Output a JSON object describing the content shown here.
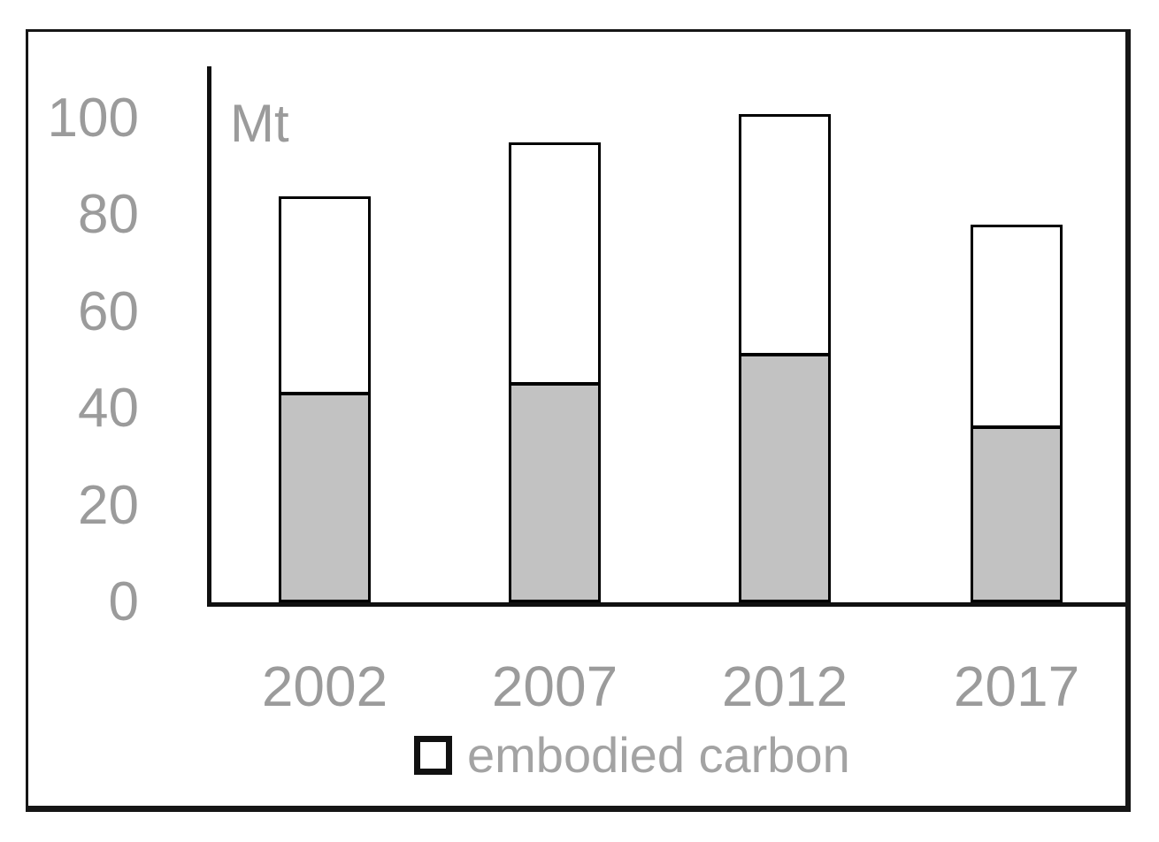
{
  "colors": {
    "gray_segment_fill": "#c2c2c2",
    "white_segment_fill": "#ffffff",
    "bar_border": "#000000",
    "axis_line": "#101010",
    "frame_border": "#161616",
    "tick_text": "#9b9b9b",
    "legend_text": "#a3a3a3"
  },
  "chart_data": {
    "type": "bar",
    "stacked": true,
    "title": "",
    "xlabel": "",
    "ylabel": "Mt",
    "categories": [
      "2002",
      "2007",
      "2012",
      "2017"
    ],
    "series": [
      {
        "name": "",
        "legend_shown": false,
        "fill": "#c2c2c2",
        "values": [
          43,
          45,
          51,
          36
        ]
      },
      {
        "name": "embodied carbon",
        "legend_shown": true,
        "fill": "#ffffff",
        "values": [
          41,
          50,
          50,
          42
        ]
      }
    ],
    "totals": [
      84,
      95,
      101,
      78
    ],
    "yticks": [
      0,
      20,
      40,
      60,
      80,
      100
    ],
    "ylim": [
      0,
      111
    ],
    "grid": false,
    "legend": {
      "position": "bottom",
      "items": [
        {
          "label": "embodied carbon",
          "swatch_fill": "#ffffff",
          "swatch_border": "#111111"
        }
      ]
    }
  }
}
